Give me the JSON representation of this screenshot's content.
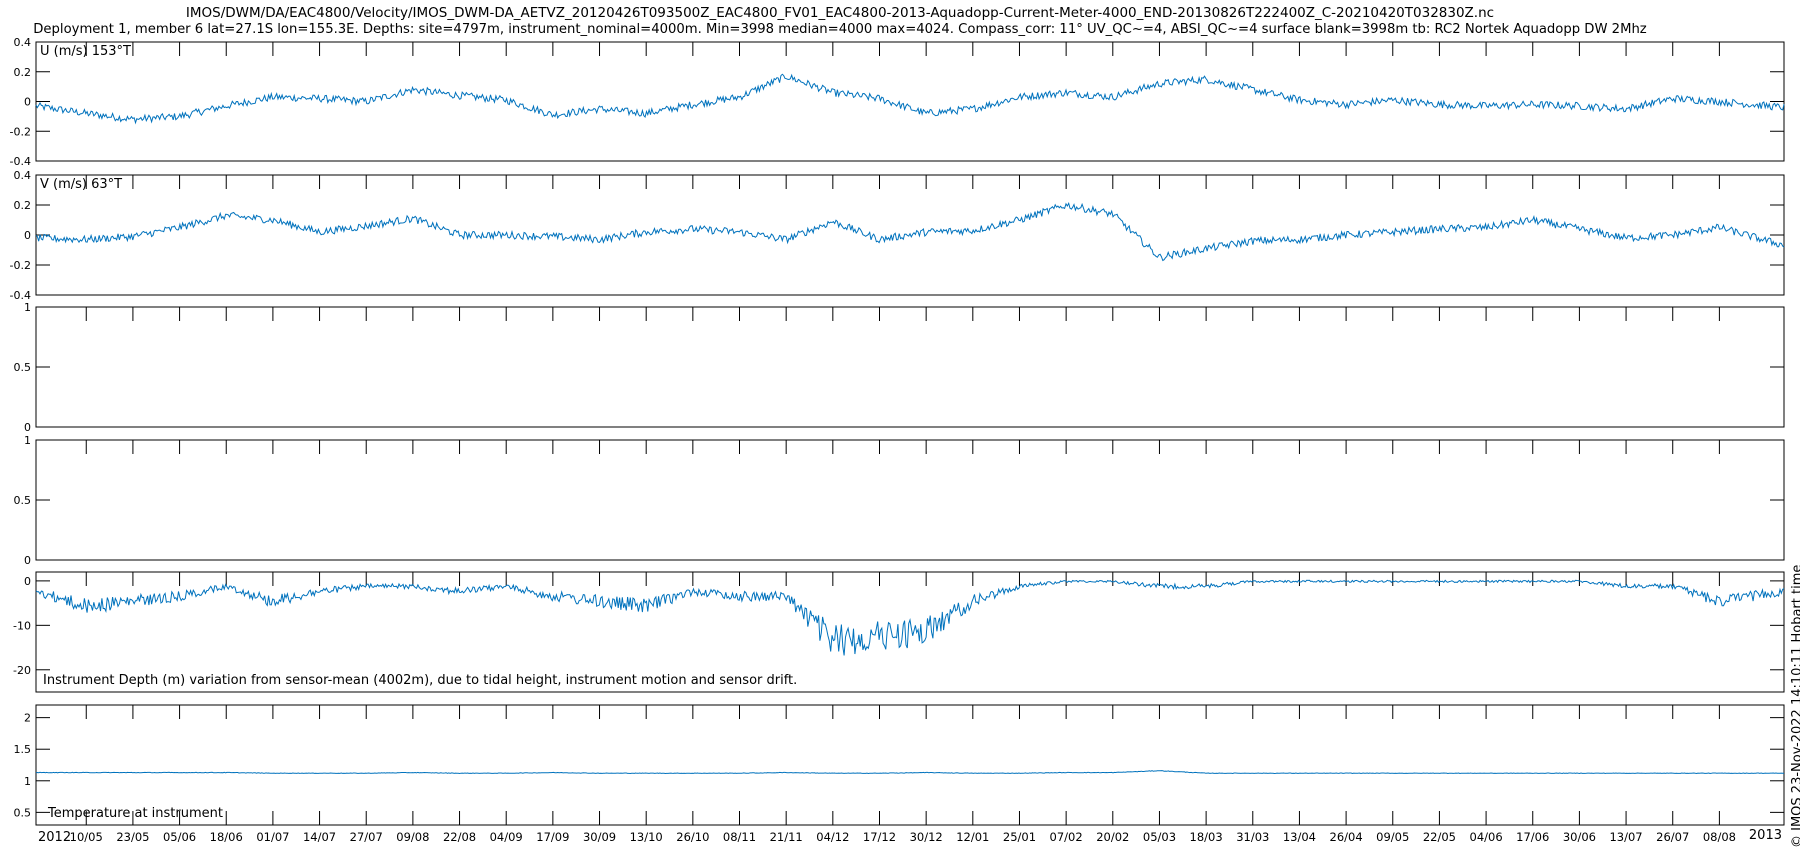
{
  "header": {
    "title_line1": "IMOS/DWM/DA/EAC4800/Velocity/IMOS_DWM-DA_AETVZ_20120426T093500Z_EAC4800_FV01_EAC4800-2013-Aquadopp-Current-Meter-4000_END-20130826T222400Z_C-20210420T032830Z.nc",
    "title_line2": "Deployment 1, member 6 lat=27.1S lon=155.3E. Depths: site=4797m, instrument_nominal=4000m. Min=3998 median=4000 max=4024. Compass_corr: 11° UV_QC~=4, ABSI_QC~=4 surface blank=3998m tb: RC2 Nortek Aquadopp DW 2Mhz"
  },
  "stamp": "© IMOS 23-Nov-2022 14:10:11 Hobart time",
  "colors": {
    "series": "#0072bd",
    "axes": "#000000",
    "background": "#ffffff"
  },
  "chart_data": [
    {
      "type": "line",
      "panel": "u-velocity",
      "label": "U (m/s) 153°T",
      "ylim": [
        -0.4,
        0.4
      ],
      "yticks": [
        "0.4",
        "0.2",
        "0",
        "-0.2",
        "-0.4"
      ],
      "ytick_values": [
        0.4,
        0.2,
        0,
        -0.2,
        -0.4
      ],
      "x": [
        "2012-04-26",
        "2012-05-10",
        "2012-05-23",
        "2012-06-05",
        "2012-06-18",
        "2012-07-01",
        "2012-07-14",
        "2012-07-27",
        "2012-08-09",
        "2012-08-22",
        "2012-09-04",
        "2012-09-17",
        "2012-09-30",
        "2012-10-13",
        "2012-10-26",
        "2012-11-08",
        "2012-11-21",
        "2012-12-04",
        "2012-12-17",
        "2012-12-30",
        "2013-01-12",
        "2013-01-25",
        "2013-02-07",
        "2013-02-20",
        "2013-03-05",
        "2013-03-18",
        "2013-03-31",
        "2013-04-13",
        "2013-04-26",
        "2013-05-09",
        "2013-05-22",
        "2013-06-04",
        "2013-06-17",
        "2013-06-30",
        "2013-07-13",
        "2013-07-26",
        "2013-08-08",
        "2013-08-26"
      ],
      "values": [
        -0.03,
        -0.08,
        -0.12,
        -0.1,
        -0.03,
        0.03,
        0.02,
        0.0,
        0.08,
        0.04,
        0.01,
        -0.09,
        -0.05,
        -0.08,
        -0.02,
        0.03,
        0.17,
        0.06,
        0.02,
        -0.08,
        -0.05,
        0.03,
        0.06,
        0.03,
        0.12,
        0.15,
        0.08,
        0.01,
        -0.02,
        0.01,
        -0.02,
        -0.03,
        -0.02,
        -0.03,
        -0.05,
        0.02,
        0.0,
        -0.04
      ]
    },
    {
      "type": "line",
      "panel": "v-velocity",
      "label": "V (m/s) 63°T",
      "ylim": [
        -0.4,
        0.4
      ],
      "yticks": [
        "0.4",
        "0.2",
        "0",
        "-0.2",
        "-0.4"
      ],
      "ytick_values": [
        0.4,
        0.2,
        0,
        -0.2,
        -0.4
      ],
      "x": [
        "2012-04-26",
        "2012-05-10",
        "2012-05-23",
        "2012-06-05",
        "2012-06-18",
        "2012-07-01",
        "2012-07-14",
        "2012-07-27",
        "2012-08-09",
        "2012-08-22",
        "2012-09-04",
        "2012-09-17",
        "2012-09-30",
        "2012-10-13",
        "2012-10-26",
        "2012-11-08",
        "2012-11-21",
        "2012-12-04",
        "2012-12-17",
        "2012-12-30",
        "2013-01-12",
        "2013-01-25",
        "2013-02-07",
        "2013-02-20",
        "2013-03-05",
        "2013-03-18",
        "2013-03-31",
        "2013-04-13",
        "2013-04-26",
        "2013-05-09",
        "2013-05-22",
        "2013-06-04",
        "2013-06-17",
        "2013-06-30",
        "2013-07-13",
        "2013-07-26",
        "2013-08-08",
        "2013-08-26"
      ],
      "values": [
        -0.02,
        -0.03,
        -0.01,
        0.05,
        0.13,
        0.1,
        0.02,
        0.06,
        0.11,
        0.0,
        0.0,
        -0.01,
        -0.03,
        0.02,
        0.04,
        0.02,
        -0.03,
        0.09,
        -0.03,
        0.02,
        0.03,
        0.1,
        0.2,
        0.14,
        -0.15,
        -0.09,
        -0.04,
        -0.03,
        0.0,
        0.02,
        0.04,
        0.05,
        0.1,
        0.04,
        -0.02,
        0.0,
        0.05,
        -0.07
      ]
    },
    {
      "type": "line",
      "panel": "empty-3",
      "ylim": [
        0,
        1
      ],
      "yticks": [
        "1",
        "0.5",
        "0"
      ],
      "ytick_values": [
        1,
        0.5,
        0
      ],
      "x": [],
      "values": []
    },
    {
      "type": "line",
      "panel": "empty-4",
      "ylim": [
        0,
        1
      ],
      "yticks": [
        "1",
        "0.5",
        "0"
      ],
      "ytick_values": [
        1,
        0.5,
        0
      ],
      "x": [],
      "values": []
    },
    {
      "type": "line",
      "panel": "depth-variation",
      "annotation": "Instrument Depth (m) variation from sensor-mean (4002m), due to tidal height, instrument motion and sensor drift.",
      "ylim": [
        -25,
        2
      ],
      "y_reversed": true,
      "yticks": [
        "0",
        "-10",
        "-20"
      ],
      "ytick_values": [
        0,
        -10,
        -20
      ],
      "x": [
        "2012-04-26",
        "2012-05-10",
        "2012-05-23",
        "2012-06-05",
        "2012-06-18",
        "2012-07-01",
        "2012-07-14",
        "2012-07-27",
        "2012-08-09",
        "2012-08-22",
        "2012-09-04",
        "2012-09-17",
        "2012-09-30",
        "2012-10-13",
        "2012-10-26",
        "2012-11-08",
        "2012-11-21",
        "2012-12-04",
        "2012-12-17",
        "2012-12-30",
        "2013-01-12",
        "2013-01-25",
        "2013-02-07",
        "2013-02-20",
        "2013-03-05",
        "2013-03-18",
        "2013-03-31",
        "2013-04-13",
        "2013-04-26",
        "2013-05-09",
        "2013-05-22",
        "2013-06-04",
        "2013-06-17",
        "2013-06-30",
        "2013-07-13",
        "2013-07-26",
        "2013-08-08",
        "2013-08-26"
      ],
      "values": [
        -2,
        -5,
        -4,
        -3,
        -1,
        -4,
        -2,
        -1,
        -1,
        -2,
        -1,
        -3,
        -4,
        -5,
        -2,
        -3,
        -3,
        -12,
        -11,
        -10,
        -4,
        -1,
        0,
        0,
        -1,
        -1,
        0,
        0,
        0,
        0,
        0,
        0,
        0,
        0,
        -1,
        -1,
        -4,
        -2
      ]
    },
    {
      "type": "line",
      "panel": "temperature",
      "annotation": "Temperature at instrument",
      "ylim": [
        0.3,
        2.2
      ],
      "yticks": [
        "2",
        "1.5",
        "1",
        "0.5"
      ],
      "ytick_values": [
        2,
        1.5,
        1,
        0.5
      ],
      "x": [
        "2012-04-26",
        "2012-05-10",
        "2012-05-23",
        "2012-06-05",
        "2012-06-18",
        "2012-07-01",
        "2012-07-14",
        "2012-07-27",
        "2012-08-09",
        "2012-08-22",
        "2012-09-04",
        "2012-09-17",
        "2012-09-30",
        "2012-10-13",
        "2012-10-26",
        "2012-11-08",
        "2012-11-21",
        "2012-12-04",
        "2012-12-17",
        "2012-12-30",
        "2013-01-12",
        "2013-01-25",
        "2013-02-07",
        "2013-02-20",
        "2013-03-05",
        "2013-03-18",
        "2013-03-31",
        "2013-04-13",
        "2013-04-26",
        "2013-05-09",
        "2013-05-22",
        "2013-06-04",
        "2013-06-17",
        "2013-06-30",
        "2013-07-13",
        "2013-07-26",
        "2013-08-08",
        "2013-08-26"
      ],
      "values": [
        1.13,
        1.13,
        1.13,
        1.13,
        1.13,
        1.12,
        1.12,
        1.12,
        1.13,
        1.12,
        1.12,
        1.13,
        1.12,
        1.12,
        1.12,
        1.12,
        1.13,
        1.12,
        1.12,
        1.13,
        1.12,
        1.12,
        1.13,
        1.13,
        1.16,
        1.12,
        1.12,
        1.12,
        1.12,
        1.12,
        1.12,
        1.12,
        1.12,
        1.12,
        1.12,
        1.12,
        1.12,
        1.12
      ]
    }
  ],
  "xaxis": {
    "ticks": [
      {
        "label": "10/05",
        "date": "2012-05-10"
      },
      {
        "label": "23/05",
        "date": "2012-05-23"
      },
      {
        "label": "05/06",
        "date": "2012-06-05"
      },
      {
        "label": "18/06",
        "date": "2012-06-18"
      },
      {
        "label": "01/07",
        "date": "2012-07-01"
      },
      {
        "label": "14/07",
        "date": "2012-07-14"
      },
      {
        "label": "27/07",
        "date": "2012-07-27"
      },
      {
        "label": "09/08",
        "date": "2012-08-09"
      },
      {
        "label": "22/08",
        "date": "2012-08-22"
      },
      {
        "label": "04/09",
        "date": "2012-09-04"
      },
      {
        "label": "17/09",
        "date": "2012-09-17"
      },
      {
        "label": "30/09",
        "date": "2012-09-30"
      },
      {
        "label": "13/10",
        "date": "2012-10-13"
      },
      {
        "label": "26/10",
        "date": "2012-10-26"
      },
      {
        "label": "08/11",
        "date": "2012-11-08"
      },
      {
        "label": "21/11",
        "date": "2012-11-21"
      },
      {
        "label": "04/12",
        "date": "2012-12-04"
      },
      {
        "label": "17/12",
        "date": "2012-12-17"
      },
      {
        "label": "30/12",
        "date": "2012-12-30"
      },
      {
        "label": "12/01",
        "date": "2013-01-12"
      },
      {
        "label": "25/01",
        "date": "2013-01-25"
      },
      {
        "label": "07/02",
        "date": "2013-02-07"
      },
      {
        "label": "20/02",
        "date": "2013-02-20"
      },
      {
        "label": "05/03",
        "date": "2013-03-05"
      },
      {
        "label": "18/03",
        "date": "2013-03-18"
      },
      {
        "label": "31/03",
        "date": "2013-03-31"
      },
      {
        "label": "13/04",
        "date": "2013-04-13"
      },
      {
        "label": "26/04",
        "date": "2013-04-26"
      },
      {
        "label": "09/05",
        "date": "2013-05-09"
      },
      {
        "label": "22/05",
        "date": "2013-05-22"
      },
      {
        "label": "04/06",
        "date": "2013-06-04"
      },
      {
        "label": "17/06",
        "date": "2013-06-17"
      },
      {
        "label": "30/06",
        "date": "2013-06-30"
      },
      {
        "label": "13/07",
        "date": "2013-07-13"
      },
      {
        "label": "26/07",
        "date": "2013-07-26"
      },
      {
        "label": "08/08",
        "date": "2013-08-08"
      }
    ],
    "start_year": "2012",
    "end_year": "2013",
    "range": [
      "2012-04-26",
      "2013-08-26"
    ]
  }
}
